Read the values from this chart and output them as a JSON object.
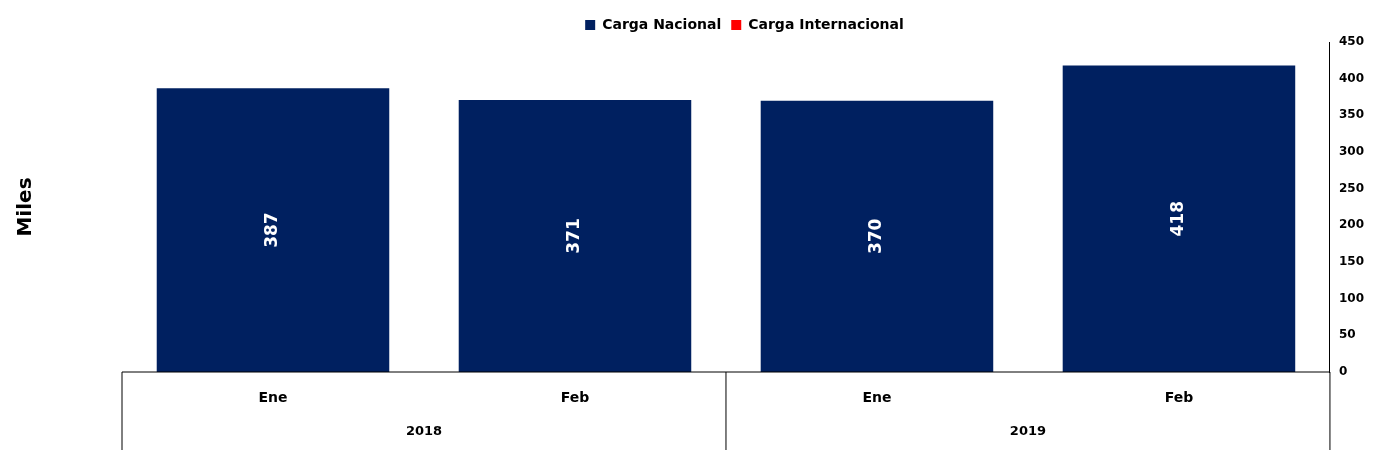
{
  "chart_data": {
    "type": "bar",
    "categories": [
      "Ene",
      "Feb",
      "Ene",
      "Feb"
    ],
    "series": [
      {
        "name": "Carga Nacional",
        "color": "#002060",
        "values": [
          387,
          371,
          370,
          418
        ]
      },
      {
        "name": "Carga Internacional",
        "color": "#ff0000",
        "values": [
          null,
          null,
          null,
          null
        ]
      }
    ],
    "stacked": true,
    "ylabel": "Miles",
    "ylim": [
      0,
      450
    ],
    "yticks": [
      0,
      50,
      100,
      150,
      200,
      250,
      300,
      350,
      400,
      450
    ],
    "annotations": [
      "2018",
      "2019"
    ],
    "data_labels": true,
    "legend": "top",
    "grid": false
  }
}
